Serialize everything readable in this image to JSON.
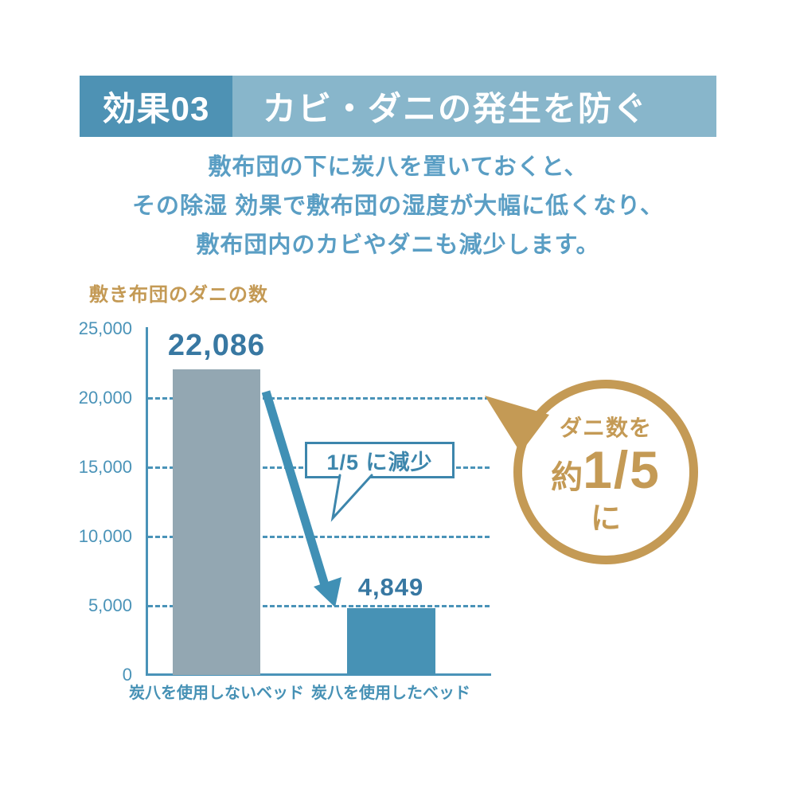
{
  "header": {
    "badge": "効果03",
    "title": "カビ・ダニの発生を防ぐ"
  },
  "intro": {
    "lines": [
      "敷布団の下に炭八を置いておくと、",
      "その除湿 効果で敷布団の湿度が大幅に低くなり、",
      "敷布団内のカビやダニも減少します。"
    ]
  },
  "chart_data": {
    "type": "bar",
    "title": "敷き布団のダニの数",
    "categories": [
      "炭八を使用しないベッド",
      "炭八を使用したベッド"
    ],
    "values": [
      22086,
      4849
    ],
    "value_labels": [
      "22,086",
      "4,849"
    ],
    "ylim": [
      0,
      25000
    ],
    "yticks": [
      25000,
      20000,
      15000,
      10000,
      5000,
      0
    ],
    "ytick_labels": [
      "25,000",
      "20,000",
      "15,000",
      "10,000",
      "5,000",
      "0"
    ],
    "grid": "dashed horizontal lines at 5,000 intervals",
    "legend": "none",
    "bar_colors": [
      "#93a7b2",
      "#4792b5"
    ],
    "annotation_callout": "1/5 に減少"
  },
  "badge": {
    "line1": "ダニ数を",
    "approx": "約",
    "fraction": "1/5",
    "line3": "に"
  },
  "colors": {
    "header_dark_blue": "#4e92b4",
    "header_light_blue": "#88b6cb",
    "intro_text_blue": "#5a9ec4",
    "gold_accent": "#c49a55",
    "axis_blue": "#4a93b8",
    "bar_gray": "#93a7b2",
    "bar_blue": "#4792b5",
    "value_label_blue": "#3878a2",
    "callout_blue": "#3d86ac",
    "arrow_blue": "#4090b5"
  }
}
